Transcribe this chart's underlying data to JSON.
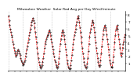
{
  "title": "Milwaukee Weather  Solar Rad Avg per Day W/m2/minute",
  "y_values": [
    7.8,
    7.2,
    6.5,
    6.0,
    5.5,
    5.0,
    4.8,
    4.2,
    3.8,
    3.2,
    2.8,
    2.5,
    2.0,
    2.2,
    2.5,
    2.8,
    3.0,
    2.8,
    2.5,
    2.2,
    1.8,
    1.5,
    1.2,
    1.0,
    0.8,
    0.9,
    1.2,
    1.5,
    2.0,
    2.5,
    3.0,
    3.5,
    4.0,
    4.5,
    5.0,
    5.5,
    6.0,
    6.5,
    7.0,
    7.2,
    7.5,
    7.2,
    6.8,
    6.2,
    5.5,
    4.8,
    4.0,
    3.2,
    2.5,
    1.8,
    1.2,
    0.8,
    0.5,
    0.3,
    0.5,
    0.8,
    1.2,
    1.8,
    2.5,
    3.2,
    3.8,
    4.2,
    4.5,
    4.8,
    5.0,
    5.2,
    5.5,
    5.8,
    5.5,
    5.0,
    4.5,
    4.0,
    3.5,
    3.0,
    2.5,
    2.0,
    1.5,
    1.2,
    0.8,
    0.5,
    0.3,
    0.5,
    1.0,
    1.8,
    2.8,
    3.8,
    4.5,
    5.0,
    5.5,
    5.8,
    5.5,
    5.0,
    4.5,
    3.8,
    3.0,
    2.2,
    1.5,
    1.0,
    0.6,
    0.3,
    0.2,
    0.3,
    0.8,
    1.5,
    2.2,
    3.0,
    3.8,
    4.5,
    5.0,
    5.5,
    6.0,
    6.5,
    7.0,
    7.5,
    7.8,
    7.5,
    7.0,
    6.2,
    5.5,
    4.8,
    4.0,
    3.2,
    2.5,
    1.8,
    1.2,
    0.8,
    0.5,
    0.3,
    0.5,
    1.0,
    1.8,
    2.8,
    3.8,
    4.8,
    5.5,
    6.0,
    6.5,
    7.0,
    7.2,
    6.8,
    6.2,
    5.5,
    4.8,
    4.0,
    3.2,
    2.5,
    1.8,
    1.2,
    0.8,
    0.5,
    0.8,
    1.5,
    2.5,
    3.5,
    4.5,
    5.2,
    5.8,
    6.2,
    6.5,
    6.2,
    5.8,
    5.2,
    4.5,
    3.8,
    3.0,
    2.2,
    1.5,
    1.0,
    0.6,
    0.4,
    0.6,
    1.2,
    2.0,
    3.0,
    4.0,
    5.0,
    5.8,
    6.2,
    6.5,
    6.0,
    5.2,
    4.5,
    3.8,
    3.2,
    2.5,
    2.0,
    2.5,
    3.2,
    3.8,
    4.2,
    4.8,
    5.2
  ],
  "line_color": "#ff0000",
  "dot_color": "#000000",
  "background_color": "#ffffff",
  "grid_color": "#999999",
  "ylim": [
    0,
    8.5
  ],
  "ytick_values": [
    1,
    2,
    3,
    4,
    5,
    6,
    7,
    8
  ],
  "tick_fontsize": 3.0,
  "title_fontsize": 3.2,
  "n_vgrid_lines": 9
}
